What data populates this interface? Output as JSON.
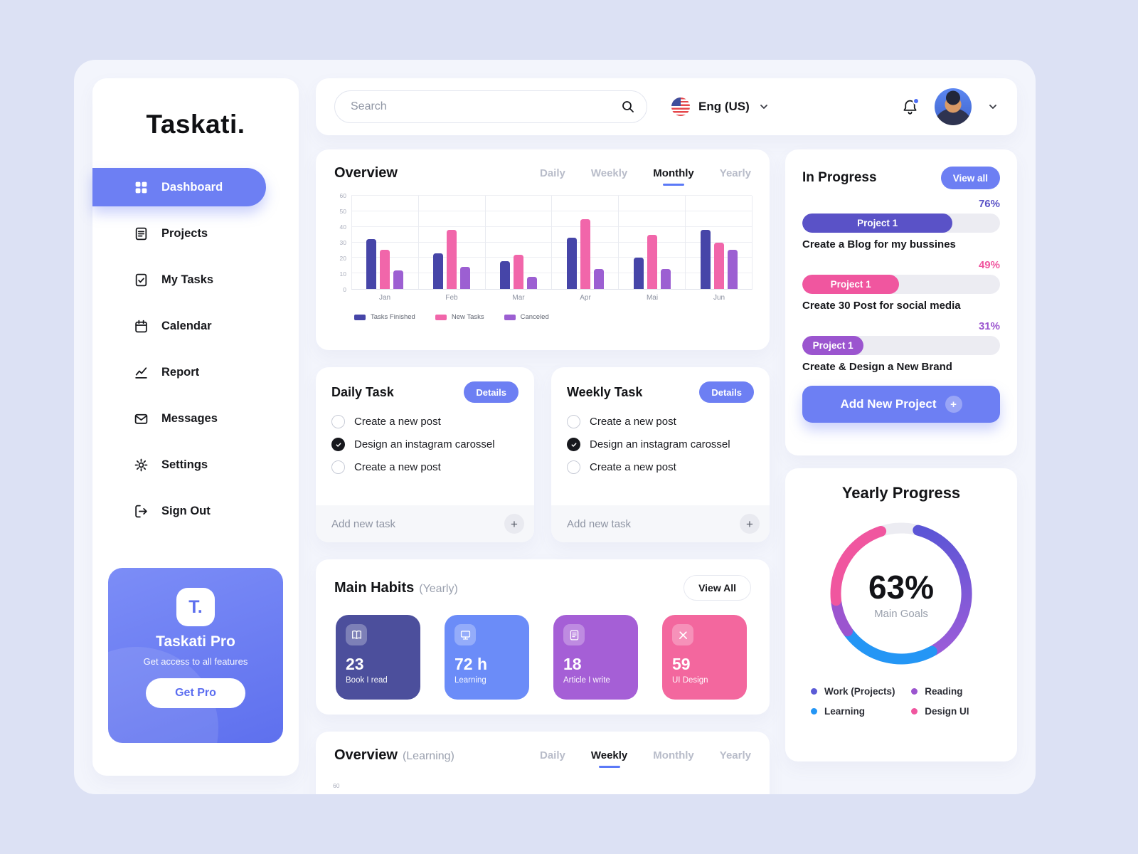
{
  "app": {
    "logo": "Taskati."
  },
  "colors": {
    "accent_blue": "#6d7ff3",
    "indigo": "#5a55c9",
    "pink": "#f0569f",
    "purple": "#9b55cf",
    "bright_blue": "#2496f5"
  },
  "sidebar": {
    "items": [
      {
        "label": "Dashboard",
        "icon": "dashboard-icon",
        "active": true
      },
      {
        "label": "Projects",
        "icon": "projects-icon",
        "active": false
      },
      {
        "label": "My Tasks",
        "icon": "my-tasks-icon",
        "active": false
      },
      {
        "label": "Calendar",
        "icon": "calendar-icon",
        "active": false
      },
      {
        "label": "Report",
        "icon": "report-icon",
        "active": false
      },
      {
        "label": "Messages",
        "icon": "messages-icon",
        "active": false
      },
      {
        "label": "Settings",
        "icon": "settings-icon",
        "active": false
      },
      {
        "label": "Sign Out",
        "icon": "sign-out-icon",
        "active": false
      }
    ],
    "pro_card": {
      "badge": "T.",
      "title": "Taskati Pro",
      "subtitle": "Get access to all features",
      "button_label": "Get Pro"
    }
  },
  "topbar": {
    "search_placeholder": "Search",
    "language_label": "Eng (US)"
  },
  "overview_tasks": {
    "title": "Overview",
    "tabs": [
      "Daily",
      "Weekly",
      "Monthly",
      "Yearly"
    ],
    "active_tab": "Monthly"
  },
  "chart_data": [
    {
      "type": "bar",
      "title": "Overview (Monthly)",
      "categories": [
        "Jan",
        "Feb",
        "Mar",
        "Apr",
        "Mai",
        "Jun"
      ],
      "series": [
        {
          "name": "Tasks Finished",
          "color": "#4645a8",
          "values": [
            32,
            23,
            18,
            33,
            20,
            38
          ]
        },
        {
          "name": "New Tasks",
          "color": "#f166aa",
          "values": [
            25,
            38,
            22,
            45,
            35,
            30
          ]
        },
        {
          "name": "Canceled",
          "color": "#9c5fd2",
          "values": [
            12,
            14,
            8,
            13,
            13,
            25
          ]
        }
      ],
      "ylim": [
        0,
        60
      ],
      "yticks": [
        0,
        10,
        20,
        30,
        40,
        50,
        60
      ],
      "grid": true,
      "legend_position": "bottom"
    },
    {
      "type": "bar",
      "title": "Overview (Learning)",
      "visible_yticks": [
        60
      ]
    }
  ],
  "daily_task": {
    "title": "Daily Task",
    "details_label": "Details",
    "items": [
      {
        "label": "Create a new post",
        "checked": false
      },
      {
        "label": "Design an instagram carossel",
        "checked": true
      },
      {
        "label": "Create a new post",
        "checked": false
      }
    ],
    "add_placeholder": "Add new task"
  },
  "weekly_task": {
    "title": "Weekly Task",
    "details_label": "Details",
    "items": [
      {
        "label": "Create a new post",
        "checked": false
      },
      {
        "label": "Design an instagram carossel",
        "checked": true
      },
      {
        "label": "Create a new post",
        "checked": false
      }
    ],
    "add_placeholder": "Add new task"
  },
  "main_habits": {
    "title": "Main Habits",
    "subtitle": "(Yearly)",
    "view_all_label": "View All",
    "tiles": [
      {
        "value": "23",
        "label": "Book I read",
        "color": "#4c4f9c",
        "icon": "book-icon"
      },
      {
        "value": "72 h",
        "label": "Learning",
        "color": "#6b8cf8",
        "icon": "monitor-icon"
      },
      {
        "value": "18",
        "label": "Article I write",
        "color": "#a55fd6",
        "icon": "article-icon"
      },
      {
        "value": "59",
        "label": "UI Design",
        "color": "#f3679e",
        "icon": "tools-icon"
      }
    ]
  },
  "overview_learning": {
    "title": "Overview",
    "subtitle": "(Learning)",
    "tabs": [
      "Daily",
      "Weekly",
      "Monthly",
      "Yearly"
    ],
    "active_tab": "Weekly",
    "visible_ytick": "60"
  },
  "in_progress": {
    "title": "In Progress",
    "view_all_label": "View all",
    "projects": [
      {
        "percent_label": "76%",
        "pct": 76,
        "badge": "Project 1",
        "desc": "Create a Blog for my bussines",
        "color": "#5a52c7"
      },
      {
        "percent_label": "49%",
        "pct": 49,
        "badge": "Project 1",
        "desc": "Create 30 Post for social media",
        "color": "#f0569f"
      },
      {
        "percent_label": "31%",
        "pct": 31,
        "badge": "Project 1",
        "desc": "Create & Design a New Brand",
        "color": "#9b55cf"
      }
    ],
    "add_button_label": "Add New Project"
  },
  "yearly_progress": {
    "title": "Yearly Progress",
    "percent": "63%",
    "subtitle": "Main Goals",
    "legend": [
      {
        "label": "Work (Projects)",
        "color": "#5b5bd6"
      },
      {
        "label": "Reading",
        "color": "#9b55cf"
      },
      {
        "label": "Learning",
        "color": "#2496f5"
      },
      {
        "label": "Design UI",
        "color": "#f0569f"
      }
    ]
  }
}
